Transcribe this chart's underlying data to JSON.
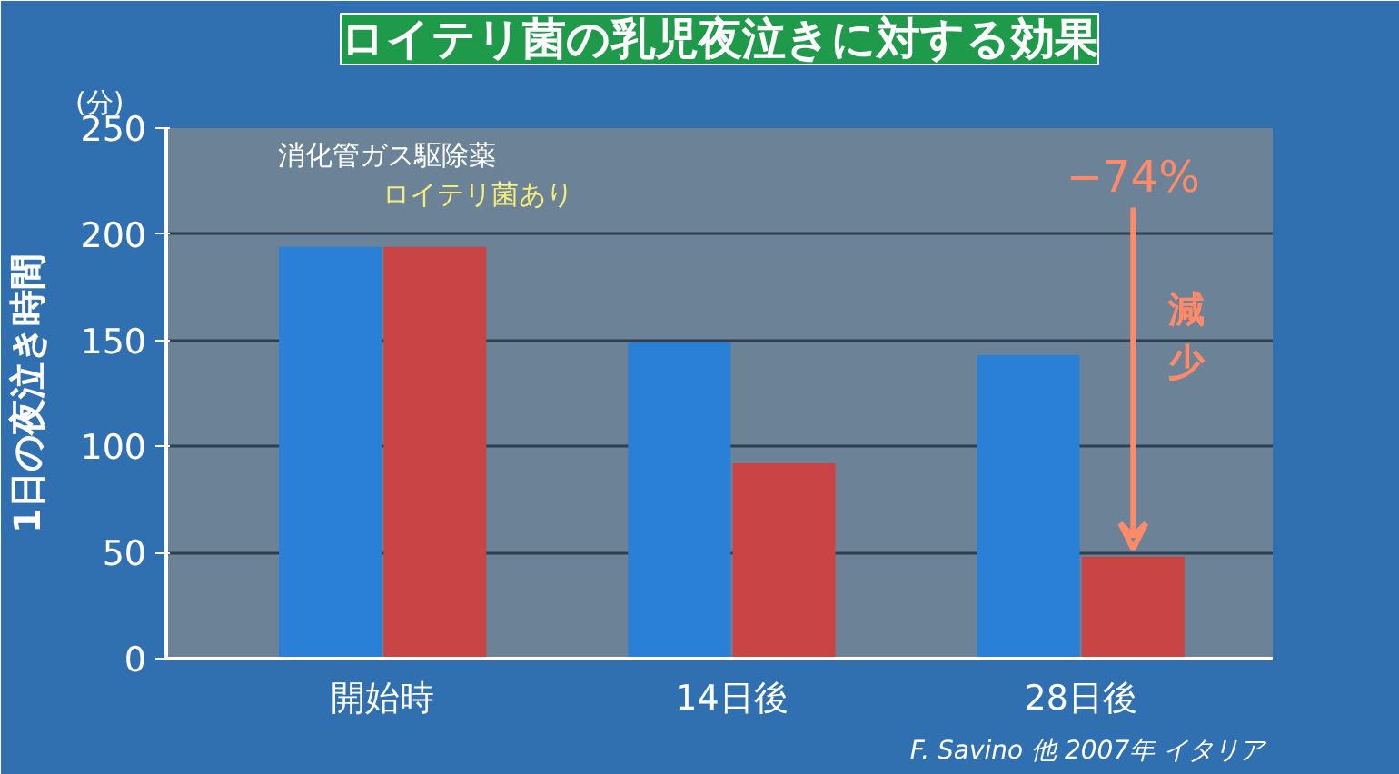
{
  "chart_data": {
    "type": "bar",
    "title": "ロイテリ菌の乳児夜泣きに対する効果",
    "ylabel": "1日の夜泣き時間",
    "categories": [
      "開始時",
      "14日後",
      "28日後"
    ],
    "series": [
      {
        "name": "消化管ガス駆除薬",
        "color": "#2a7fd6",
        "values": [
          194,
          149,
          143
        ]
      },
      {
        "name": "ロイテリ菌あり",
        "color": "#c94545",
        "values": [
          194,
          92,
          48
        ]
      }
    ],
    "ylim": [
      0,
      250
    ],
    "yticks": [
      0,
      50,
      100,
      150,
      200,
      250
    ],
    "grid": "y",
    "annotations": [
      "(分)",
      "−74%",
      "減少",
      "F. Savino 他  2007年 イタリア"
    ]
  }
}
